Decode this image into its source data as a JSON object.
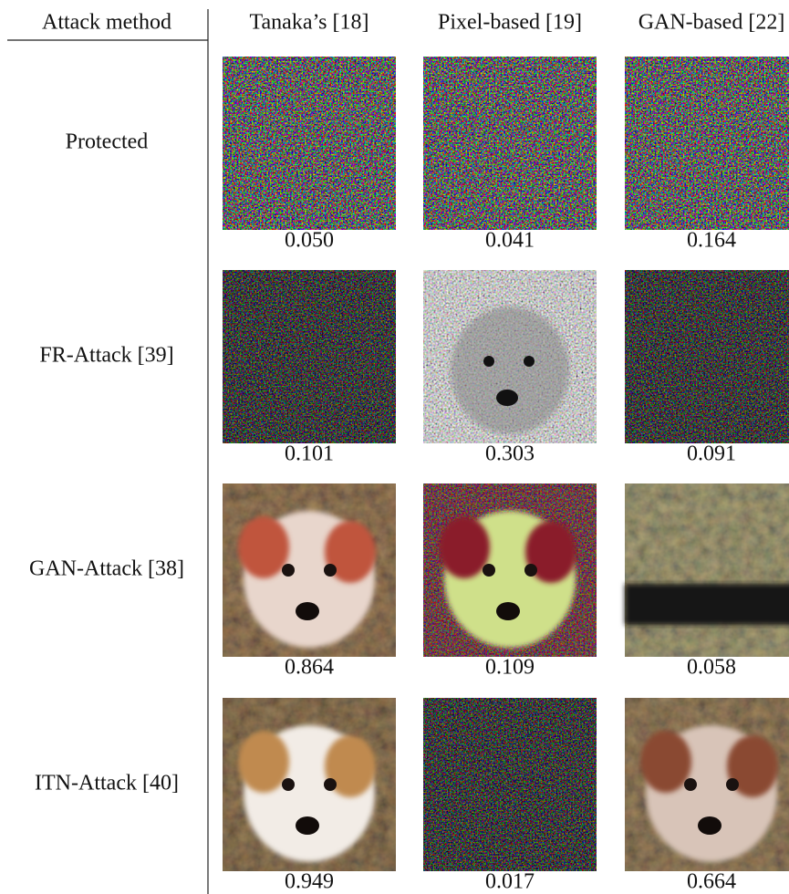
{
  "header": {
    "row_label": "Attack method",
    "columns": [
      "Tanaka’s [18]",
      "Pixel-based [19]",
      "GAN-based [22]"
    ]
  },
  "rows": [
    {
      "label": "Protected",
      "scores": [
        "0.050",
        "0.041",
        "0.164"
      ]
    },
    {
      "label": "FR-Attack [39]",
      "scores": [
        "0.101",
        "0.303",
        "0.091"
      ]
    },
    {
      "label": "GAN-Attack [38]",
      "scores": [
        "0.864",
        "0.109",
        "0.058"
      ]
    },
    {
      "label": "ITN-Attack [40]",
      "scores": [
        "0.949",
        "0.017",
        "0.664"
      ]
    }
  ]
}
